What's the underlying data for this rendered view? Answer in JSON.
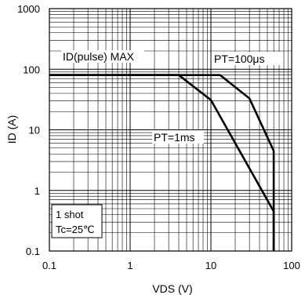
{
  "chart_data": {
    "type": "line",
    "x_scale": "log",
    "y_scale": "log",
    "xlim": [
      0.1,
      100
    ],
    "ylim": [
      0.1,
      1000
    ],
    "x_ticks": [
      "0.1",
      "1",
      "10",
      "100"
    ],
    "y_ticks": [
      "0.1",
      "1",
      "10",
      "100",
      "1000"
    ],
    "xlabel": "VDS  (V)",
    "ylabel": "ID  (A)",
    "grid": true,
    "series": [
      {
        "name": "ID(pulse)  MAX",
        "x": [
          0.1,
          4.0
        ],
        "y": [
          80,
          80
        ]
      },
      {
        "name": "PT=100μs",
        "x": [
          0.1,
          13,
          30,
          60,
          60
        ],
        "y": [
          80,
          80,
          33,
          4.5,
          0.1
        ]
      },
      {
        "name": "PT=1ms",
        "x": [
          0.1,
          4.0,
          10,
          60,
          60
        ],
        "y": [
          80,
          80,
          31,
          0.45,
          0.1
        ]
      }
    ],
    "annotations": {
      "pulse_max": "ID(pulse)  MAX",
      "pt100": "PT=100μs",
      "pt1ms": "PT=1ms",
      "note_line1": "1 shot",
      "note_line2": "Tc=25℃"
    }
  }
}
